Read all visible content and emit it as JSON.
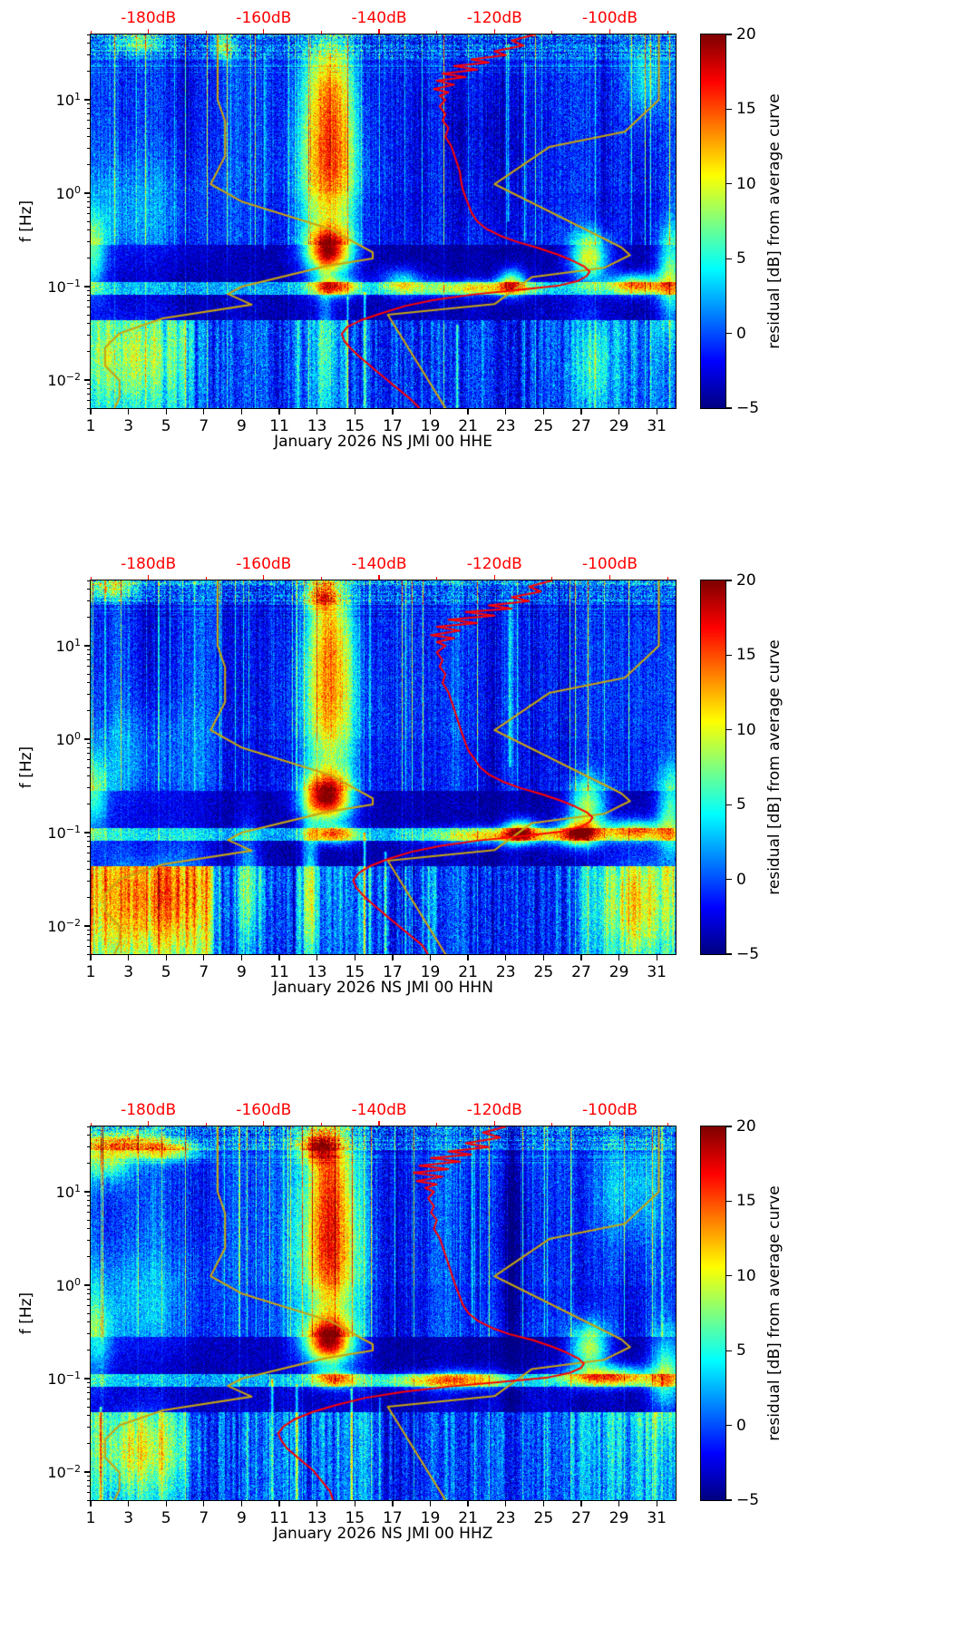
{
  "figure": {
    "type": "seismic PSD residual spectrograms",
    "panel_count": 3,
    "month": "January 2026",
    "station_code": "NS JMI 00"
  },
  "axes_shared": {
    "y_label": "f [Hz]",
    "y_scale": "log",
    "f_min_hz": 0.005,
    "f_max_hz": 50,
    "y_tick_exponents": [
      1,
      0,
      -1,
      -2
    ],
    "x_ticks_days": [
      1,
      3,
      5,
      7,
      9,
      11,
      13,
      15,
      17,
      19,
      21,
      23,
      25,
      27,
      29,
      31
    ],
    "x_range_days": [
      1,
      32
    ],
    "top_axis": {
      "tick_labels": [
        "-180dB",
        "-160dB",
        "-140dB",
        "-120dB",
        "-100dB"
      ],
      "tick_values_db": [
        -180,
        -160,
        -140,
        -120,
        -100
      ],
      "range_db": [
        -190,
        -88.6
      ],
      "color": "#ff0000"
    },
    "colorbar": {
      "label": "residual [dB] from average curve",
      "tick_values": [
        20,
        15,
        10,
        5,
        0,
        -5
      ],
      "range": [
        -5,
        20
      ],
      "colormap": "jet"
    }
  },
  "noise_models": {
    "name": "Peterson noise models",
    "color": "#c7a412",
    "nlnm": {
      "periods_s": [
        0.1,
        0.17,
        0.4,
        0.8,
        1.24,
        2.4,
        4.3,
        5.0,
        6.0,
        10.0,
        12.0,
        15.6,
        21.9,
        31.6,
        45.0,
        70.0,
        101.0,
        154.0,
        328.0
      ],
      "db": [
        -168.0,
        -166.7,
        -166.7,
        -169.2,
        -163.7,
        -148.6,
        -141.1,
        -141.1,
        -149.0,
        -163.8,
        -166.2,
        -162.1,
        -177.5,
        -185.0,
        -187.5,
        -187.5,
        -185.0,
        -185.0,
        -187.5
      ]
    },
    "nhnm": {
      "periods_s": [
        0.1,
        0.22,
        0.32,
        0.8,
        3.8,
        4.6,
        6.3,
        7.9,
        15.4,
        20.0,
        354.8
      ],
      "db": [
        -91.5,
        -97.4,
        -110.5,
        -120.0,
        -98.0,
        -96.5,
        -101.0,
        -113.5,
        -120.0,
        -138.5,
        -126.0
      ]
    }
  },
  "chart_data": [
    {
      "type": "heatmap",
      "xlabel": "January 2026 NS JMI 00 HHE",
      "channel": "HHE",
      "x": {
        "unit": "day of January 2026",
        "range": [
          1,
          32
        ]
      },
      "y": {
        "unit": "Hz",
        "scale": "log",
        "range": [
          0.005,
          50
        ]
      },
      "z": {
        "unit": "residual [dB] from average curve",
        "range": [
          -5,
          20
        ]
      },
      "render_seed": 11,
      "mean_psd_curve": {
        "color": "#ff0000",
        "f_hz": [
          50,
          43,
          38,
          33,
          30,
          27,
          25,
          23,
          21,
          19,
          17.5,
          16,
          14.5,
          13,
          12,
          11,
          10,
          8.5,
          7,
          6,
          5,
          4,
          3.2,
          2.6,
          2.1,
          1.7,
          1.35,
          1.1,
          0.9,
          0.75,
          0.62,
          0.5,
          0.42,
          0.35,
          0.3,
          0.26,
          0.22,
          0.19,
          0.165,
          0.145,
          0.13,
          0.115,
          0.102,
          0.092,
          0.082,
          0.072,
          0.062,
          0.052,
          0.044,
          0.037,
          0.031,
          0.026,
          0.022,
          0.018,
          0.015,
          0.0125,
          0.0105,
          0.0088,
          0.0074,
          0.0062,
          0.005
        ],
        "db": [
          -113,
          -117,
          -115,
          -120,
          -118,
          -124,
          -121,
          -127,
          -123,
          -129,
          -125,
          -130,
          -127,
          -130.5,
          -128,
          -129.5,
          -128.5,
          -129.5,
          -128.5,
          -129,
          -128,
          -128.5,
          -127.5,
          -127,
          -126.5,
          -126,
          -125.8,
          -125.5,
          -125,
          -124.5,
          -124,
          -123,
          -121.5,
          -119,
          -116,
          -112.5,
          -109,
          -106.5,
          -104.5,
          -103.5,
          -104,
          -105.5,
          -109,
          -116,
          -124,
          -130.5,
          -135.5,
          -139.5,
          -143,
          -145.5,
          -146.5,
          -146,
          -145,
          -143.5,
          -142,
          -140.5,
          -139,
          -137.5,
          -136,
          -134.5,
          -133
        ]
      },
      "hot_spots": [
        [
          13.6,
          1.0,
          0.55,
          0.5,
          13
        ],
        [
          13.6,
          0.9,
          1.25,
          0.35,
          8
        ],
        [
          13.6,
          0.85,
          -0.62,
          0.17,
          19
        ],
        [
          13.6,
          1.1,
          -0.08,
          0.45,
          7
        ],
        [
          13.9,
          0.9,
          -1.0,
          0.07,
          12
        ],
        [
          21.5,
          2.2,
          -1.01,
          0.06,
          9
        ],
        [
          23.3,
          0.5,
          -0.95,
          0.1,
          12
        ],
        [
          27.4,
          0.7,
          -0.68,
          0.18,
          14
        ],
        [
          29.9,
          1.1,
          -0.97,
          0.08,
          13
        ],
        [
          31.7,
          0.5,
          -0.85,
          0.35,
          11
        ],
        [
          3.0,
          2.0,
          -1.8,
          0.33,
          5
        ],
        [
          1.1,
          0.5,
          -0.65,
          0.3,
          9
        ],
        [
          27.6,
          0.7,
          -1.85,
          0.4,
          6
        ],
        [
          13.4,
          0.3,
          -1.7,
          0.6,
          6
        ],
        [
          3.5,
          1.0,
          1.62,
          0.08,
          7
        ],
        [
          8.0,
          0.4,
          1.58,
          0.1,
          8
        ],
        [
          30.4,
          0.7,
          1.25,
          0.3,
          6
        ],
        [
          3.5,
          2.5,
          -0.2,
          0.4,
          3.5
        ],
        [
          22,
          3.0,
          0.6,
          0.6,
          -2
        ],
        [
          17.5,
          0.8,
          -0.95,
          0.1,
          8
        ]
      ],
      "vertical_lines": [
        [
          15.5,
          0.05,
          -2.3,
          -1.05,
          9
        ],
        [
          20.4,
          0.05,
          -2.3,
          -1.4,
          7
        ],
        [
          14.6,
          0.04,
          -2.3,
          -1.1,
          6
        ],
        [
          23.1,
          0.06,
          -0.3,
          1.6,
          5
        ],
        [
          24.0,
          0.05,
          -0.5,
          1.4,
          4.5
        ],
        [
          10.2,
          0.05,
          -0.6,
          1.5,
          4
        ]
      ],
      "low_freq_zones": [
        [
          1,
          6.5,
          6.5,
          2.8
        ],
        [
          6.5,
          11.5,
          1.5,
          2.6
        ],
        [
          11.5,
          16,
          2.5,
          3.0
        ],
        [
          16,
          21,
          0.5,
          2.4
        ],
        [
          21,
          26.5,
          0.8,
          2.4
        ],
        [
          26.5,
          32.1,
          3.0,
          3.0
        ]
      ]
    },
    {
      "type": "heatmap",
      "xlabel": "January 2026 NS JMI 00 HHN",
      "channel": "HHN",
      "x": {
        "unit": "day of January 2026",
        "range": [
          1,
          32
        ]
      },
      "y": {
        "unit": "Hz",
        "scale": "log",
        "range": [
          0.005,
          50
        ]
      },
      "z": {
        "unit": "residual [dB] from average curve",
        "range": [
          -5,
          20
        ]
      },
      "render_seed": 22,
      "mean_psd_curve": {
        "color": "#ff0000",
        "f_hz": [
          50,
          43,
          38,
          33,
          30,
          27,
          25,
          23,
          21,
          19,
          17.5,
          16,
          14.5,
          13,
          12,
          11,
          10,
          8.5,
          7,
          6,
          5,
          4,
          3.2,
          2.6,
          2.1,
          1.7,
          1.35,
          1.1,
          0.9,
          0.75,
          0.62,
          0.5,
          0.42,
          0.35,
          0.3,
          0.26,
          0.22,
          0.19,
          0.165,
          0.145,
          0.13,
          0.115,
          0.102,
          0.092,
          0.082,
          0.072,
          0.062,
          0.052,
          0.044,
          0.037,
          0.031,
          0.026,
          0.022,
          0.018,
          0.015,
          0.0125,
          0.0105,
          0.0088,
          0.0074,
          0.0062,
          0.005
        ],
        "db": [
          -110,
          -114,
          -112,
          -117,
          -114,
          -121,
          -117,
          -125,
          -120,
          -128,
          -123,
          -130,
          -126,
          -131,
          -127,
          -130,
          -128.5,
          -130,
          -129,
          -129.5,
          -128.5,
          -129,
          -128,
          -127.5,
          -127,
          -126.5,
          -126,
          -125.5,
          -125,
          -124.5,
          -123.5,
          -122.5,
          -121,
          -118.5,
          -115.5,
          -112,
          -108.5,
          -106,
          -104,
          -103,
          -103.5,
          -105,
          -108.5,
          -115,
          -123,
          -129.5,
          -134.5,
          -138.5,
          -141.5,
          -143.5,
          -144.5,
          -144,
          -143,
          -141.5,
          -140,
          -138.5,
          -137,
          -135.5,
          -134,
          -132.5,
          -131.5
        ]
      },
      "hot_spots": [
        [
          13.6,
          1.0,
          0.6,
          0.5,
          12
        ],
        [
          13.6,
          0.9,
          1.3,
          0.4,
          9
        ],
        [
          13.5,
          0.9,
          -0.62,
          0.18,
          21
        ],
        [
          13.6,
          1.1,
          -0.08,
          0.45,
          7
        ],
        [
          13.9,
          0.9,
          -1.02,
          0.07,
          11
        ],
        [
          22.5,
          2.6,
          -1.03,
          0.07,
          10
        ],
        [
          26.8,
          0.8,
          -1.0,
          0.1,
          15
        ],
        [
          23.8,
          0.6,
          -0.98,
          0.09,
          13
        ],
        [
          29.8,
          1.2,
          -0.97,
          0.08,
          12
        ],
        [
          31.7,
          0.5,
          -0.8,
          0.35,
          10
        ],
        [
          2.8,
          1.8,
          -1.75,
          0.45,
          6
        ],
        [
          5.6,
          1.1,
          -1.7,
          0.45,
          6
        ],
        [
          1.2,
          0.5,
          -0.6,
          0.3,
          8
        ],
        [
          12.6,
          0.3,
          -1.7,
          0.6,
          10
        ],
        [
          30.0,
          1.4,
          -1.8,
          0.4,
          7
        ],
        [
          27.3,
          0.7,
          -0.7,
          0.2,
          12
        ],
        [
          2.0,
          1.2,
          1.62,
          0.08,
          8
        ],
        [
          13.2,
          0.6,
          1.55,
          0.12,
          9
        ],
        [
          9.3,
          0.5,
          -1.6,
          0.5,
          7
        ],
        [
          3.5,
          2.5,
          -0.2,
          0.4,
          3.5
        ]
      ],
      "vertical_lines": [
        [
          15.5,
          0.05,
          -2.3,
          -1.0,
          10
        ],
        [
          16.6,
          0.05,
          -2.3,
          -1.2,
          8
        ],
        [
          18.9,
          0.04,
          -2.3,
          -1.35,
          6
        ],
        [
          23.2,
          0.06,
          -0.3,
          1.5,
          5
        ],
        [
          7.1,
          0.05,
          -2.3,
          -1.35,
          7
        ]
      ],
      "low_freq_zones": [
        [
          1,
          7.5,
          10,
          3.5
        ],
        [
          7.5,
          12,
          2.5,
          3.0
        ],
        [
          12,
          16,
          3.5,
          3.2
        ],
        [
          16,
          20.5,
          1.5,
          2.8
        ],
        [
          20.5,
          27,
          1.2,
          2.6
        ],
        [
          27,
          32.1,
          6,
          3.2
        ]
      ]
    },
    {
      "type": "heatmap",
      "xlabel": "January 2026 NS JMI 00 HHZ",
      "channel": "HHZ",
      "x": {
        "unit": "day of January 2026",
        "range": [
          1,
          32
        ]
      },
      "y": {
        "unit": "Hz",
        "scale": "log",
        "range": [
          0.005,
          50
        ]
      },
      "z": {
        "unit": "residual [dB] from average curve",
        "range": [
          -5,
          20
        ]
      },
      "render_seed": 33,
      "mean_psd_curve": {
        "color": "#ff0000",
        "f_hz": [
          50,
          43,
          38,
          33,
          30,
          27,
          25,
          23,
          21,
          19,
          17.5,
          16,
          14.5,
          13,
          12,
          11,
          10,
          8.5,
          7,
          6,
          5,
          4,
          3.2,
          2.6,
          2.1,
          1.7,
          1.35,
          1.1,
          0.9,
          0.75,
          0.62,
          0.5,
          0.42,
          0.35,
          0.3,
          0.26,
          0.22,
          0.19,
          0.165,
          0.145,
          0.13,
          0.115,
          0.102,
          0.092,
          0.082,
          0.072,
          0.062,
          0.052,
          0.044,
          0.037,
          0.031,
          0.026,
          0.022,
          0.018,
          0.015,
          0.0125,
          0.0105,
          0.0088,
          0.0074,
          0.0062,
          0.005
        ],
        "db": [
          -118,
          -122,
          -119,
          -125,
          -121,
          -128,
          -124,
          -131,
          -126,
          -133,
          -128,
          -134,
          -129,
          -133.5,
          -130,
          -132,
          -130.5,
          -131.5,
          -130.5,
          -131,
          -130,
          -130.5,
          -129.5,
          -129,
          -128.5,
          -128,
          -127.5,
          -127,
          -126.5,
          -126,
          -125.5,
          -124.5,
          -123,
          -120.5,
          -117.5,
          -113.5,
          -110,
          -107.5,
          -105.5,
          -104.5,
          -105,
          -107,
          -111,
          -119,
          -128,
          -136,
          -142.5,
          -147.5,
          -151.5,
          -154.5,
          -156.5,
          -157.5,
          -157,
          -156,
          -154.5,
          -153,
          -151.5,
          -150.5,
          -149.5,
          -148.5,
          -148
        ]
      },
      "hot_spots": [
        [
          13.6,
          1.0,
          0.55,
          0.5,
          13
        ],
        [
          13.6,
          0.9,
          1.3,
          0.4,
          10
        ],
        [
          13.6,
          0.9,
          -0.6,
          0.17,
          20
        ],
        [
          13.6,
          1.1,
          -0.05,
          0.45,
          7
        ],
        [
          13.9,
          0.9,
          -1.0,
          0.07,
          11
        ],
        [
          19.0,
          2.0,
          -1.02,
          0.06,
          8
        ],
        [
          28.5,
          1.8,
          -0.97,
          0.08,
          13
        ],
        [
          31.5,
          0.6,
          -0.9,
          0.3,
          10
        ],
        [
          27.4,
          0.7,
          -0.66,
          0.18,
          13
        ],
        [
          3.6,
          1.7,
          -1.78,
          0.3,
          6
        ],
        [
          1.3,
          0.6,
          -0.55,
          0.35,
          7
        ],
        [
          2.6,
          1.8,
          1.52,
          0.1,
          11
        ],
        [
          5.2,
          1.2,
          1.44,
          0.07,
          9
        ],
        [
          13.0,
          0.7,
          1.5,
          0.12,
          11
        ],
        [
          1.8,
          0.9,
          1.3,
          0.15,
          8
        ],
        [
          29.5,
          1.2,
          1.05,
          0.4,
          5
        ],
        [
          23.5,
          2.0,
          0.5,
          0.8,
          -2.5
        ],
        [
          3.5,
          2.5,
          -0.2,
          0.4,
          3.5
        ],
        [
          21.0,
          1.5,
          -1.0,
          0.07,
          7
        ]
      ],
      "vertical_lines": [
        [
          10.6,
          0.05,
          -2.3,
          -1.0,
          8
        ],
        [
          11.9,
          0.05,
          -2.3,
          -1.05,
          7
        ],
        [
          14.8,
          0.04,
          -2.3,
          -1.1,
          9
        ],
        [
          16.3,
          0.04,
          -2.3,
          -1.2,
          6
        ],
        [
          21.2,
          0.05,
          -0.4,
          1.5,
          5
        ],
        [
          1.5,
          0.05,
          -2.3,
          -1.3,
          8
        ]
      ],
      "low_freq_zones": [
        [
          1,
          6,
          5.5,
          2.8
        ],
        [
          6,
          10.5,
          1.2,
          2.6
        ],
        [
          10.5,
          16,
          2.8,
          3.0
        ],
        [
          16,
          21.5,
          1.0,
          2.6
        ],
        [
          21.5,
          26.5,
          1.5,
          2.6
        ],
        [
          26.5,
          32.1,
          5,
          3.0
        ]
      ]
    }
  ]
}
